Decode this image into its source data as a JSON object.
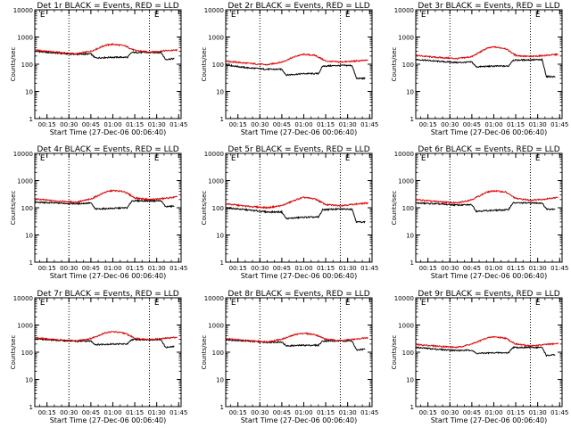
{
  "colors": {
    "events": "#000000",
    "lld": "#e00000",
    "axis": "#000000",
    "background": "#ffffff"
  },
  "chart_data": [
    {
      "type": "line",
      "panel": "det-1r",
      "title": "Det 1r BLACK = Events, RED = LLD",
      "xlabel": "Start Time (27-Dec-06 00:06:40)",
      "ylabel": "Counts/sec",
      "yscale": "log",
      "ylim": [
        1,
        10000
      ],
      "xticks": [
        "00:15",
        "00:30",
        "00:45",
        "01:00",
        "01:15",
        "01:30",
        "01:45"
      ],
      "yticks": [
        "1",
        "10",
        "100",
        "1000",
        "10000"
      ],
      "dotted_lines_at": [
        "00:30",
        "01:25"
      ],
      "annotations": [
        {
          "text": "E",
          "at_time": "00:12"
        },
        {
          "text": "E",
          "at_time": "01:30"
        }
      ],
      "series": [
        {
          "key": "events",
          "color": "#000000",
          "x": [
            "00:06:40",
            "00:20",
            "00:35",
            "00:45",
            "00:48",
            "01:00",
            "01:10",
            "01:13",
            "01:25",
            "01:33",
            "01:36",
            "01:42"
          ],
          "y": [
            300,
            260,
            230,
            240,
            170,
            180,
            180,
            270,
            270,
            270,
            150,
            160
          ]
        },
        {
          "key": "lld",
          "color": "#e00000",
          "x": [
            "00:06:40",
            "00:20",
            "00:35",
            "00:45",
            "00:55",
            "01:00",
            "01:08",
            "01:15",
            "01:25",
            "01:35",
            "01:44"
          ],
          "y": [
            330,
            280,
            240,
            300,
            500,
            540,
            480,
            320,
            280,
            310,
            330
          ]
        }
      ]
    },
    {
      "type": "line",
      "panel": "det-2r",
      "title": "Det 2r BLACK = Events, RED = LLD",
      "xlabel": "Start Time (27-Dec-06 00:06:40)",
      "ylabel": "Counts/sec",
      "yscale": "log",
      "ylim": [
        1,
        10000
      ],
      "xticks": [
        "00:15",
        "00:30",
        "00:45",
        "01:00",
        "01:15",
        "01:30",
        "01:45"
      ],
      "yticks": [
        "1",
        "10",
        "100",
        "1000",
        "10000"
      ],
      "dotted_lines_at": [
        "00:30",
        "01:25"
      ],
      "annotations": [
        {
          "text": "E",
          "at_time": "00:12"
        },
        {
          "text": "E",
          "at_time": "01:30"
        }
      ],
      "series": [
        {
          "key": "events",
          "color": "#000000",
          "x": [
            "00:06:40",
            "00:20",
            "00:35",
            "00:45",
            "00:48",
            "01:00",
            "01:10",
            "01:13",
            "01:25",
            "01:33",
            "01:36",
            "01:42"
          ],
          "y": [
            95,
            75,
            65,
            65,
            40,
            45,
            45,
            85,
            90,
            90,
            30,
            30
          ]
        },
        {
          "key": "lld",
          "color": "#e00000",
          "x": [
            "00:06:40",
            "00:20",
            "00:35",
            "00:45",
            "00:55",
            "01:00",
            "01:08",
            "01:15",
            "01:25",
            "01:35",
            "01:44"
          ],
          "y": [
            130,
            110,
            95,
            120,
            200,
            230,
            210,
            130,
            120,
            130,
            140
          ]
        }
      ]
    },
    {
      "type": "line",
      "panel": "det-3r",
      "title": "Det 3r BLACK = Events, RED = LLD",
      "xlabel": "Start Time (27-Dec-06 00:06:40)",
      "ylabel": "Counts/sec",
      "yscale": "log",
      "ylim": [
        1,
        10000
      ],
      "xticks": [
        "00:15",
        "00:30",
        "00:45",
        "01:00",
        "01:15",
        "01:30",
        "01:45"
      ],
      "yticks": [
        "1",
        "10",
        "100",
        "1000",
        "10000"
      ],
      "dotted_lines_at": [
        "00:30",
        "01:25"
      ],
      "annotations": [
        {
          "text": "E",
          "at_time": "00:12"
        },
        {
          "text": "E",
          "at_time": "01:30"
        }
      ],
      "series": [
        {
          "key": "events",
          "color": "#000000",
          "x": [
            "00:06:40",
            "00:20",
            "00:35",
            "00:45",
            "00:48",
            "01:00",
            "01:10",
            "01:13",
            "01:25",
            "01:33",
            "01:36",
            "01:42"
          ],
          "y": [
            150,
            130,
            115,
            120,
            80,
            85,
            85,
            140,
            145,
            145,
            35,
            35
          ]
        },
        {
          "key": "lld",
          "color": "#e00000",
          "x": [
            "00:06:40",
            "00:20",
            "00:35",
            "00:45",
            "00:55",
            "01:00",
            "01:08",
            "01:15",
            "01:25",
            "01:35",
            "01:44"
          ],
          "y": [
            210,
            180,
            160,
            190,
            380,
            430,
            380,
            210,
            190,
            210,
            230
          ]
        }
      ]
    },
    {
      "type": "line",
      "panel": "det-4r",
      "title": "Det 4r BLACK = Events, RED = LLD",
      "xlabel": "Start Time (27-Dec-06 00:06:40)",
      "ylabel": "Counts/sec",
      "yscale": "log",
      "ylim": [
        1,
        10000
      ],
      "xticks": [
        "00:15",
        "00:30",
        "00:45",
        "01:00",
        "01:15",
        "01:30",
        "01:45"
      ],
      "yticks": [
        "1",
        "10",
        "100",
        "1000",
        "10000"
      ],
      "dotted_lines_at": [
        "00:30",
        "01:25"
      ],
      "annotations": [
        {
          "text": "E",
          "at_time": "00:12"
        },
        {
          "text": "E",
          "at_time": "01:30"
        }
      ],
      "series": [
        {
          "key": "events",
          "color": "#000000",
          "x": [
            "00:06:40",
            "00:20",
            "00:35",
            "00:45",
            "00:48",
            "01:00",
            "01:10",
            "01:13",
            "01:25",
            "01:33",
            "01:36",
            "01:42"
          ],
          "y": [
            160,
            150,
            140,
            150,
            90,
            95,
            100,
            180,
            180,
            180,
            110,
            115
          ]
        },
        {
          "key": "lld",
          "color": "#e00000",
          "x": [
            "00:06:40",
            "00:20",
            "00:35",
            "00:45",
            "00:55",
            "01:00",
            "01:08",
            "01:15",
            "01:25",
            "01:35",
            "01:44"
          ],
          "y": [
            210,
            180,
            160,
            210,
            380,
            430,
            390,
            230,
            200,
            220,
            250
          ]
        }
      ]
    },
    {
      "type": "line",
      "panel": "det-5r",
      "title": "Det 5r BLACK = Events, RED = LLD",
      "xlabel": "Start Time (27-Dec-06 00:06:40)",
      "ylabel": "Counts/sec",
      "yscale": "log",
      "ylim": [
        1,
        10000
      ],
      "xticks": [
        "00:15",
        "00:30",
        "00:45",
        "01:00",
        "01:15",
        "01:30",
        "01:45"
      ],
      "yticks": [
        "1",
        "10",
        "100",
        "1000",
        "10000"
      ],
      "dotted_lines_at": [
        "00:30",
        "01:25"
      ],
      "annotations": [
        {
          "text": "E",
          "at_time": "00:12"
        },
        {
          "text": "E",
          "at_time": "01:30"
        }
      ],
      "series": [
        {
          "key": "events",
          "color": "#000000",
          "x": [
            "00:06:40",
            "00:20",
            "00:35",
            "00:45",
            "00:48",
            "01:00",
            "01:10",
            "01:13",
            "01:25",
            "01:33",
            "01:36",
            "01:42"
          ],
          "y": [
            100,
            85,
            70,
            70,
            40,
            45,
            45,
            85,
            90,
            90,
            30,
            30
          ]
        },
        {
          "key": "lld",
          "color": "#e00000",
          "x": [
            "00:06:40",
            "00:20",
            "00:35",
            "00:45",
            "00:55",
            "01:00",
            "01:08",
            "01:15",
            "01:25",
            "01:35",
            "01:44"
          ],
          "y": [
            140,
            115,
            100,
            120,
            200,
            240,
            210,
            130,
            120,
            135,
            150
          ]
        }
      ]
    },
    {
      "type": "line",
      "panel": "det-6r",
      "title": "Det 6r BLACK = Events, RED = LLD",
      "xlabel": "Start Time (27-Dec-06 00:06:40)",
      "ylabel": "Counts/sec",
      "yscale": "log",
      "ylim": [
        1,
        10000
      ],
      "xticks": [
        "00:15",
        "00:30",
        "00:45",
        "01:00",
        "01:15",
        "01:30",
        "01:45"
      ],
      "yticks": [
        "1",
        "10",
        "100",
        "1000",
        "10000"
      ],
      "dotted_lines_at": [
        "00:30",
        "01:25"
      ],
      "annotations": [
        {
          "text": "E",
          "at_time": "00:12"
        },
        {
          "text": "E",
          "at_time": "01:30"
        }
      ],
      "series": [
        {
          "key": "events",
          "color": "#000000",
          "x": [
            "00:06:40",
            "00:20",
            "00:35",
            "00:45",
            "00:48",
            "01:00",
            "01:10",
            "01:13",
            "01:25",
            "01:33",
            "01:36",
            "01:42"
          ],
          "y": [
            150,
            140,
            125,
            130,
            75,
            80,
            85,
            150,
            150,
            150,
            90,
            90
          ]
        },
        {
          "key": "lld",
          "color": "#e00000",
          "x": [
            "00:06:40",
            "00:20",
            "00:35",
            "00:45",
            "00:55",
            "01:00",
            "01:08",
            "01:15",
            "01:25",
            "01:35",
            "01:44"
          ],
          "y": [
            200,
            170,
            150,
            200,
            370,
            420,
            380,
            220,
            190,
            210,
            240
          ]
        }
      ]
    },
    {
      "type": "line",
      "panel": "det-7r",
      "title": "Det 7r BLACK = Events, RED = LLD",
      "xlabel": "Start Time (27-Dec-06 00:06:40)",
      "ylabel": "Counts/sec",
      "yscale": "log",
      "ylim": [
        1,
        10000
      ],
      "xticks": [
        "00:15",
        "00:30",
        "00:45",
        "01:00",
        "01:15",
        "01:30",
        "01:45"
      ],
      "yticks": [
        "1",
        "10",
        "100",
        "1000",
        "10000"
      ],
      "dotted_lines_at": [
        "00:30",
        "01:25"
      ],
      "annotations": [
        {
          "text": "E",
          "at_time": "00:12"
        },
        {
          "text": "E",
          "at_time": "01:30"
        }
      ],
      "series": [
        {
          "key": "events",
          "color": "#000000",
          "x": [
            "00:06:40",
            "00:20",
            "00:35",
            "00:45",
            "00:48",
            "01:00",
            "01:10",
            "01:13",
            "01:25",
            "01:33",
            "01:36",
            "01:42"
          ],
          "y": [
            310,
            280,
            250,
            260,
            190,
            200,
            200,
            290,
            290,
            290,
            150,
            160
          ]
        },
        {
          "key": "lld",
          "color": "#e00000",
          "x": [
            "00:06:40",
            "00:20",
            "00:35",
            "00:45",
            "00:55",
            "01:00",
            "01:08",
            "01:15",
            "01:25",
            "01:35",
            "01:44"
          ],
          "y": [
            340,
            290,
            260,
            320,
            520,
            570,
            500,
            330,
            290,
            320,
            360
          ]
        }
      ]
    },
    {
      "type": "line",
      "panel": "det-8r",
      "title": "Det 8r BLACK = Events, RED = LLD",
      "xlabel": "Start Time (27-Dec-06 00:06:40)",
      "ylabel": "Counts/sec",
      "yscale": "log",
      "ylim": [
        1,
        10000
      ],
      "xticks": [
        "00:15",
        "00:30",
        "00:45",
        "01:00",
        "01:15",
        "01:30",
        "01:45"
      ],
      "yticks": [
        "1",
        "10",
        "100",
        "1000",
        "10000"
      ],
      "dotted_lines_at": [
        "00:30",
        "01:25"
      ],
      "annotations": [
        {
          "text": "E",
          "at_time": "00:12"
        },
        {
          "text": "E",
          "at_time": "01:30"
        }
      ],
      "series": [
        {
          "key": "events",
          "color": "#000000",
          "x": [
            "00:06:40",
            "00:20",
            "00:35",
            "00:45",
            "00:48",
            "01:00",
            "01:10",
            "01:13",
            "01:25",
            "01:33",
            "01:36",
            "01:42"
          ],
          "y": [
            290,
            260,
            230,
            240,
            170,
            180,
            180,
            260,
            260,
            260,
            120,
            130
          ]
        },
        {
          "key": "lld",
          "color": "#e00000",
          "x": [
            "00:06:40",
            "00:20",
            "00:35",
            "00:45",
            "00:55",
            "01:00",
            "01:08",
            "01:15",
            "01:25",
            "01:35",
            "01:44"
          ],
          "y": [
            320,
            270,
            240,
            300,
            460,
            500,
            440,
            300,
            270,
            300,
            340
          ]
        }
      ]
    },
    {
      "type": "line",
      "panel": "det-9r",
      "title": "Det 9r BLACK = Events, RED = LLD",
      "xlabel": "Start Time (27-Dec-06 00:06:40)",
      "ylabel": "Counts/sec",
      "yscale": "log",
      "ylim": [
        1,
        10000
      ],
      "xticks": [
        "00:15",
        "00:30",
        "00:45",
        "01:00",
        "01:15",
        "01:30",
        "01:45"
      ],
      "yticks": [
        "1",
        "10",
        "100",
        "1000",
        "10000"
      ],
      "dotted_lines_at": [
        "00:30",
        "01:25"
      ],
      "annotations": [
        {
          "text": "E",
          "at_time": "00:12"
        },
        {
          "text": "E",
          "at_time": "01:30"
        }
      ],
      "series": [
        {
          "key": "events",
          "color": "#000000",
          "x": [
            "00:06:40",
            "00:20",
            "00:35",
            "00:45",
            "00:48",
            "01:00",
            "01:10",
            "01:13",
            "01:25",
            "01:33",
            "01:36",
            "01:42"
          ],
          "y": [
            150,
            130,
            115,
            120,
            90,
            95,
            95,
            150,
            150,
            150,
            75,
            80
          ]
        },
        {
          "key": "lld",
          "color": "#e00000",
          "x": [
            "00:06:40",
            "00:20",
            "00:35",
            "00:45",
            "00:55",
            "01:00",
            "01:08",
            "01:15",
            "01:25",
            "01:35",
            "01:44"
          ],
          "y": [
            190,
            170,
            150,
            200,
            330,
            370,
            330,
            200,
            170,
            190,
            210
          ]
        }
      ]
    }
  ]
}
